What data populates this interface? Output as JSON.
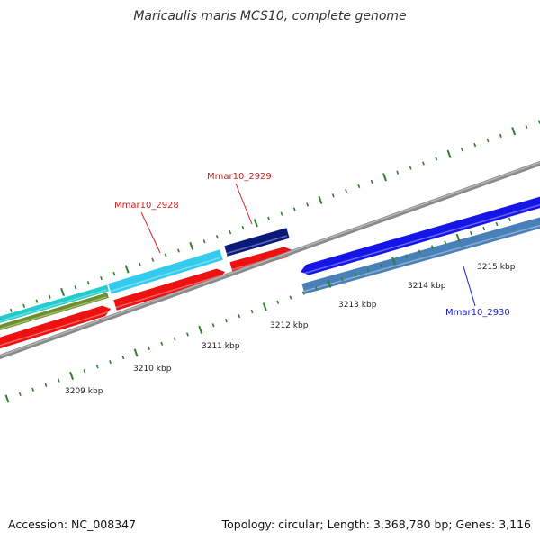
{
  "title": "Maricaulis maris MCS10, complete genome",
  "footer": {
    "accession": "Accession: NC_008347",
    "summary": "Topology: circular; Length: 3,368,780 bp; Genes: 3,116"
  },
  "colors": {
    "backbone": "#8a8a8a",
    "tick": "#2f7f2f",
    "label_red": "#cc2222",
    "label_blue": "#1a1acc",
    "gene_red": "#ee1111",
    "gene_cyan": "#33ccee",
    "gene_teal": "#22cccc",
    "gene_olive": "#6e8f2a",
    "gene_navy": "#0a1a7a",
    "gene_blue": "#1515e8",
    "gene_steel": "#4a80b8"
  },
  "scale_labels": [
    "3209 kbp",
    "3210 kbp",
    "3211 kbp",
    "3212 kbp",
    "3213 kbp",
    "3214 kbp",
    "3215 kbp"
  ],
  "gene_labels": [
    {
      "text": "Mmar10_2928",
      "color": "label_red"
    },
    {
      "text": "Mmar10_2929",
      "color": "label_red"
    },
    {
      "text": "Mmar10_2930",
      "color": "label_blue"
    }
  ]
}
